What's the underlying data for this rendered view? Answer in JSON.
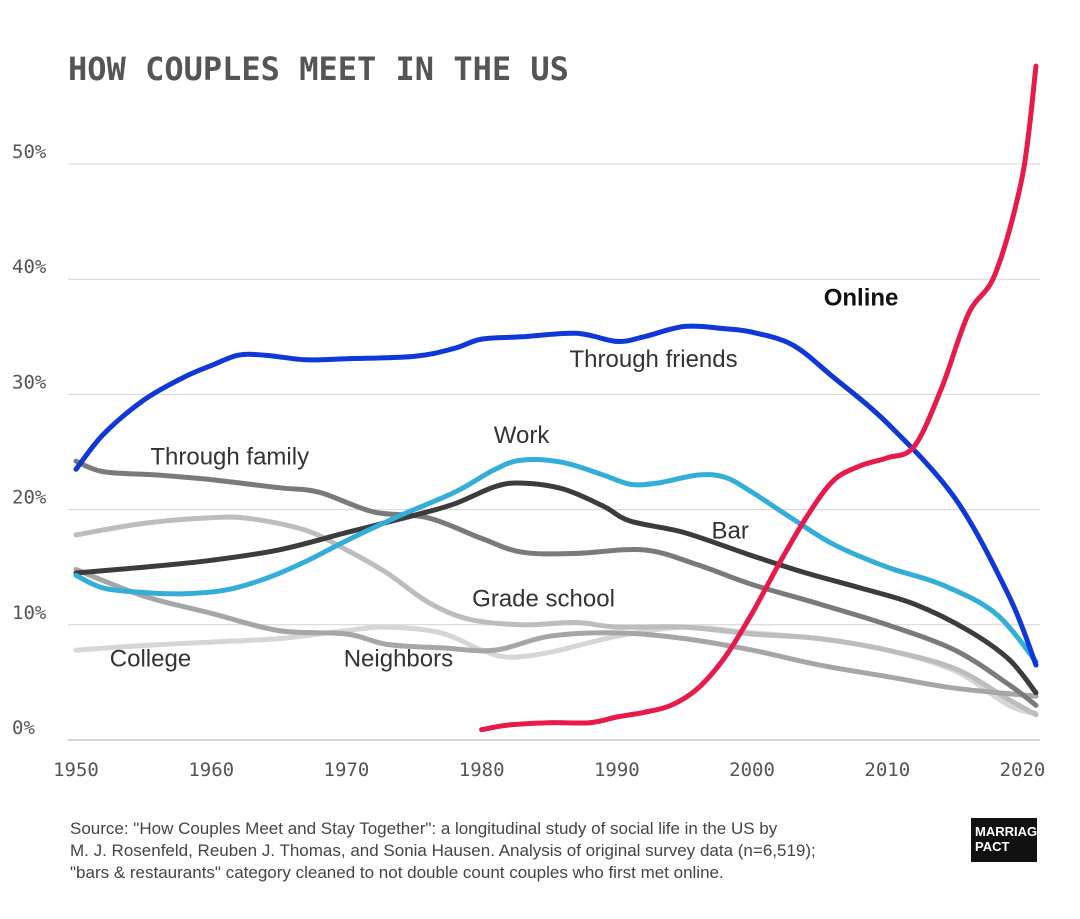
{
  "chart_data": {
    "type": "line",
    "title": "HOW COUPLES MEET IN THE US",
    "xlabel": "",
    "ylabel": "",
    "xlim": [
      1950,
      2021
    ],
    "ylim": [
      0,
      58
    ],
    "x_ticks": [
      1950,
      1960,
      1970,
      1980,
      1990,
      2000,
      2010,
      2020
    ],
    "x_tick_labels": [
      "1950",
      "1960",
      "1970",
      "1980",
      "1990",
      "2000",
      "2010",
      "2020"
    ],
    "y_ticks": [
      0,
      10,
      20,
      30,
      40,
      50
    ],
    "y_tick_labels": [
      "0%",
      "10%",
      "20%",
      "30%",
      "40%",
      "50%"
    ],
    "grid": true,
    "legend": "labels placed on lines",
    "series": [
      {
        "name": "College",
        "color": "#d6d6d6",
        "label_at": [
          1952.5,
          6.4
        ],
        "points": [
          [
            1950,
            7.8
          ],
          [
            1955,
            8.2
          ],
          [
            1960,
            8.5
          ],
          [
            1965,
            8.8
          ],
          [
            1970,
            9.5
          ],
          [
            1973,
            9.8
          ],
          [
            1977,
            9.3
          ],
          [
            1980,
            7.8
          ],
          [
            1982,
            7.2
          ],
          [
            1985,
            7.6
          ],
          [
            1990,
            9.0
          ],
          [
            1995,
            9.8
          ],
          [
            2000,
            9.3
          ],
          [
            2005,
            8.8
          ],
          [
            2010,
            7.8
          ],
          [
            2015,
            6.0
          ],
          [
            2019,
            3.0
          ],
          [
            2021,
            2.3
          ]
        ]
      },
      {
        "name": "Grade school",
        "color": "#bdbdbd",
        "label_at": [
          1979.3,
          11.6
        ],
        "points": [
          [
            1950,
            17.8
          ],
          [
            1955,
            18.8
          ],
          [
            1960,
            19.3
          ],
          [
            1963,
            19.2
          ],
          [
            1967,
            18.2
          ],
          [
            1970,
            16.5
          ],
          [
            1973,
            14.5
          ],
          [
            1976,
            12.0
          ],
          [
            1979,
            10.5
          ],
          [
            1983,
            10.0
          ],
          [
            1987,
            10.2
          ],
          [
            1990,
            9.8
          ],
          [
            1995,
            9.8
          ],
          [
            2000,
            9.2
          ],
          [
            2005,
            8.8
          ],
          [
            2010,
            7.8
          ],
          [
            2015,
            6.2
          ],
          [
            2019,
            3.5
          ],
          [
            2021,
            2.2
          ]
        ]
      },
      {
        "name": "Neighbors",
        "color": "#a6a6a6",
        "label_at": [
          1969.8,
          6.4
        ],
        "points": [
          [
            1950,
            14.8
          ],
          [
            1955,
            12.5
          ],
          [
            1960,
            11.0
          ],
          [
            1965,
            9.5
          ],
          [
            1970,
            9.2
          ],
          [
            1973,
            8.3
          ],
          [
            1977,
            8.0
          ],
          [
            1981,
            7.8
          ],
          [
            1985,
            9.0
          ],
          [
            1990,
            9.3
          ],
          [
            1995,
            8.8
          ],
          [
            2000,
            7.8
          ],
          [
            2005,
            6.5
          ],
          [
            2010,
            5.5
          ],
          [
            2015,
            4.5
          ],
          [
            2021,
            3.8
          ]
        ]
      },
      {
        "name": "Through family",
        "color": "#7a7a7a",
        "label_at": [
          1955.5,
          23.9
        ],
        "points": [
          [
            1950,
            24.2
          ],
          [
            1952,
            23.3
          ],
          [
            1956,
            23.0
          ],
          [
            1960,
            22.6
          ],
          [
            1965,
            21.9
          ],
          [
            1968,
            21.5
          ],
          [
            1972,
            19.8
          ],
          [
            1976,
            19.3
          ],
          [
            1980,
            17.5
          ],
          [
            1983,
            16.3
          ],
          [
            1987,
            16.2
          ],
          [
            1992,
            16.5
          ],
          [
            1996,
            15.2
          ],
          [
            2000,
            13.5
          ],
          [
            2005,
            11.8
          ],
          [
            2010,
            10.0
          ],
          [
            2015,
            7.8
          ],
          [
            2019,
            4.8
          ],
          [
            2021,
            3.0
          ]
        ]
      },
      {
        "name": "Bar",
        "color": "#3c3c3c",
        "label_at": [
          1997.0,
          17.5
        ],
        "points": [
          [
            1950,
            14.5
          ],
          [
            1955,
            15.0
          ],
          [
            1960,
            15.6
          ],
          [
            1965,
            16.5
          ],
          [
            1970,
            18.0
          ],
          [
            1975,
            19.5
          ],
          [
            1978,
            20.5
          ],
          [
            1981,
            22.0
          ],
          [
            1983,
            22.3
          ],
          [
            1986,
            21.8
          ],
          [
            1989,
            20.3
          ],
          [
            1991,
            19.0
          ],
          [
            1995,
            18.0
          ],
          [
            2000,
            16.0
          ],
          [
            2004,
            14.5
          ],
          [
            2008,
            13.2
          ],
          [
            2012,
            11.8
          ],
          [
            2016,
            9.5
          ],
          [
            2019,
            7.0
          ],
          [
            2021,
            4.1
          ]
        ]
      },
      {
        "name": "Work",
        "color": "#33aed8",
        "label_at": [
          1980.9,
          25.8
        ],
        "points": [
          [
            1950,
            14.3
          ],
          [
            1952,
            13.2
          ],
          [
            1955,
            12.8
          ],
          [
            1958,
            12.7
          ],
          [
            1961,
            13.0
          ],
          [
            1964,
            14.0
          ],
          [
            1967,
            15.5
          ],
          [
            1970,
            17.3
          ],
          [
            1974,
            19.5
          ],
          [
            1978,
            21.5
          ],
          [
            1981,
            23.5
          ],
          [
            1983,
            24.3
          ],
          [
            1986,
            24.1
          ],
          [
            1989,
            23.0
          ],
          [
            1991,
            22.2
          ],
          [
            1993,
            22.3
          ],
          [
            1996,
            23.0
          ],
          [
            1998,
            22.8
          ],
          [
            2000,
            21.5
          ],
          [
            2003,
            19.2
          ],
          [
            2006,
            17.0
          ],
          [
            2010,
            15.0
          ],
          [
            2014,
            13.5
          ],
          [
            2018,
            11.0
          ],
          [
            2021,
            6.8
          ]
        ]
      },
      {
        "name": "Through friends",
        "color": "#1038d8",
        "label_at": [
          1986.5,
          32.4
        ],
        "points": [
          [
            1950,
            23.5
          ],
          [
            1952,
            26.5
          ],
          [
            1955,
            29.5
          ],
          [
            1958,
            31.5
          ],
          [
            1960,
            32.5
          ],
          [
            1962,
            33.4
          ],
          [
            1964,
            33.4
          ],
          [
            1967,
            33.0
          ],
          [
            1970,
            33.1
          ],
          [
            1975,
            33.3
          ],
          [
            1978,
            34.0
          ],
          [
            1980,
            34.8
          ],
          [
            1983,
            35.0
          ],
          [
            1987,
            35.3
          ],
          [
            1990,
            34.6
          ],
          [
            1992,
            35.0
          ],
          [
            1995,
            35.9
          ],
          [
            1998,
            35.7
          ],
          [
            2000,
            35.4
          ],
          [
            2003,
            34.3
          ],
          [
            2006,
            31.5
          ],
          [
            2010,
            27.5
          ],
          [
            2015,
            21.0
          ],
          [
            2019,
            12.5
          ],
          [
            2021,
            6.5
          ]
        ]
      },
      {
        "name": "Online",
        "color": "#e81a49",
        "label_at": [
          2005.3,
          37.7
        ],
        "emphasis": true,
        "points": [
          [
            1980,
            0.9
          ],
          [
            1982,
            1.3
          ],
          [
            1985,
            1.5
          ],
          [
            1988,
            1.5
          ],
          [
            1990,
            2.0
          ],
          [
            1992,
            2.4
          ],
          [
            1994,
            3.0
          ],
          [
            1996,
            4.5
          ],
          [
            1998,
            7.2
          ],
          [
            2000,
            11.0
          ],
          [
            2002,
            15.3
          ],
          [
            2004,
            19.3
          ],
          [
            2006,
            22.5
          ],
          [
            2008,
            23.8
          ],
          [
            2010,
            24.5
          ],
          [
            2012,
            25.5
          ],
          [
            2014,
            30.5
          ],
          [
            2016,
            37.0
          ],
          [
            2018,
            40.5
          ],
          [
            2020,
            49.0
          ],
          [
            2021,
            58.5
          ]
        ]
      }
    ]
  },
  "source": {
    "lines": [
      "Source: \"How Couples Meet and Stay Together\": a longitudinal study of social life in the US by",
      "M. J. Rosenfeld, Reuben J. Thomas, and Sonia Hausen. Analysis of original survey data (n=6,519);",
      "\"bars & restaurants\" category cleaned to not double count couples who first met online."
    ]
  },
  "logo": {
    "line1": "MARRIAGE",
    "line2": "PACT"
  }
}
